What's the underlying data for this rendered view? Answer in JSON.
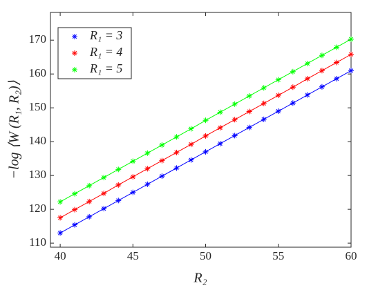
{
  "chart_data": {
    "type": "line",
    "xlabel": "R₂",
    "ylabel": "−log ⟨W (R₁, R₂)⟩",
    "x": [
      40,
      41,
      42,
      43,
      44,
      45,
      46,
      47,
      48,
      49,
      50,
      51,
      52,
      53,
      54,
      55,
      56,
      57,
      58,
      59,
      60
    ],
    "series": [
      {
        "name": "R₁ = 3",
        "color": "#0000ff",
        "values": [
          113.0,
          115.4,
          117.8,
          120.2,
          122.6,
          125.0,
          127.4,
          129.8,
          132.2,
          134.6,
          137.0,
          139.4,
          141.8,
          144.2,
          146.6,
          149.0,
          151.4,
          153.8,
          156.2,
          158.6,
          161.0
        ]
      },
      {
        "name": "R₁ = 4",
        "color": "#ff0000",
        "values": [
          117.5,
          119.9,
          122.3,
          124.7,
          127.2,
          129.6,
          132.0,
          134.4,
          136.8,
          139.2,
          141.7,
          144.1,
          146.5,
          148.9,
          151.3,
          153.7,
          156.1,
          158.6,
          161.0,
          163.4,
          165.8
        ]
      },
      {
        "name": "R₁ = 5",
        "color": "#00ff00",
        "values": [
          122.2,
          124.6,
          127.0,
          129.4,
          131.8,
          134.2,
          136.6,
          139.0,
          141.4,
          143.8,
          146.3,
          148.7,
          151.1,
          153.5,
          155.9,
          158.3,
          160.7,
          163.1,
          165.5,
          167.9,
          170.3
        ]
      }
    ],
    "xlim": [
      39.33,
      60
    ],
    "ylim": [
      108.8,
      178.2
    ],
    "xticks": [
      40,
      45,
      50,
      55,
      60
    ],
    "yticks": [
      110,
      120,
      130,
      140,
      150,
      160,
      170
    ],
    "legend": "upper left",
    "marker": "*"
  }
}
